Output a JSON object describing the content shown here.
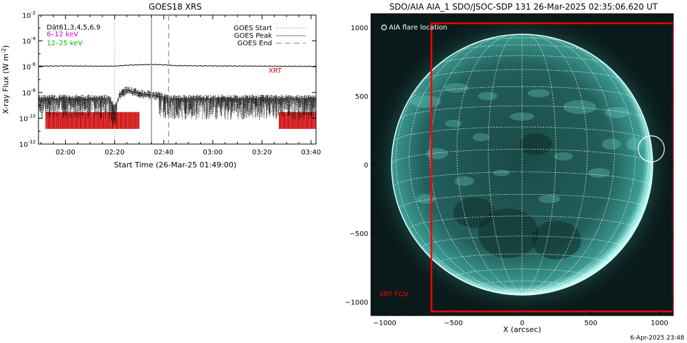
{
  "chart_data": [
    {
      "type": "line",
      "title": "GOES18 XRS",
      "xlabel": "Start Time (26-Mar-25 01:49:00)",
      "ylabel": "X-ray Flux (W m",
      "ylabel_sup": "-2",
      "ylabel_close": ")",
      "y_scale": "log",
      "ylim": [
        1e-12,
        0.01
      ],
      "y_ticks": [
        {
          "value": 0.01,
          "base": "10",
          "exp": "-2"
        },
        {
          "value": 0.0001,
          "base": "10",
          "exp": "-4"
        },
        {
          "value": 1e-06,
          "base": "10",
          "exp": "-6"
        },
        {
          "value": 1e-08,
          "base": "10",
          "exp": "-8"
        },
        {
          "value": 1e-10,
          "base": "10",
          "exp": "-10"
        },
        {
          "value": 1e-12,
          "base": "10",
          "exp": "-12"
        }
      ],
      "xlim": [
        "01:49",
        "03:42"
      ],
      "x_ticks": [
        "02:00",
        "02:20",
        "02:40",
        "03:00",
        "03:20",
        "03:40"
      ],
      "annotations": [
        {
          "text": "Dät61,3,4,5,6,9",
          "color": "#000000"
        },
        {
          "text": "6–12 keV",
          "color": "#d000d0"
        },
        {
          "text": "12–25 keV",
          "color": "#00c000"
        }
      ],
      "legend": {
        "placement": "top-right",
        "entries": [
          {
            "label": "GOES Start",
            "style": "dotted"
          },
          {
            "label": "GOES Peak",
            "style": "solid"
          },
          {
            "label": "GOES End",
            "style": "dashed"
          }
        ]
      },
      "events": {
        "start": "02:20",
        "peak": "02:35",
        "end": "02:42"
      },
      "series": [
        {
          "color": "#000000",
          "x": [
            "01:49",
            "02:00",
            "02:10",
            "02:20",
            "02:25",
            "02:30",
            "02:35",
            "02:40",
            "02:45",
            "03:00",
            "03:20",
            "03:42"
          ],
          "y": [
            1.1e-06,
            1.15e-06,
            1.1e-06,
            1.1e-06,
            1.3e-06,
            1.4e-06,
            1.5e-06,
            1.4e-06,
            1.2e-06,
            1.15e-06,
            1.1e-06,
            1.05e-06
          ]
        },
        {
          "color": "#000000",
          "x": [
            "01:49",
            "02:00",
            "02:10",
            "02:18",
            "02:20",
            "02:22",
            "02:25",
            "02:30",
            "02:35",
            "02:38",
            "02:42",
            "03:00",
            "03:20",
            "03:42"
          ],
          "y": [
            3e-09,
            3e-09,
            3e-09,
            3e-09,
            5e-10,
            6e-09,
            1.5e-08,
            8e-09,
            6e-09,
            5e-09,
            3e-09,
            3e-09,
            3e-09,
            3e-09
          ]
        }
      ],
      "xrt": {
        "label": "XRT",
        "color": "#cc0000",
        "coverage": [
          [
            "01:52",
            "02:30"
          ],
          [
            "03:27",
            "03:42"
          ]
        ]
      }
    },
    {
      "type": "scatter",
      "title": "SDO/AIA AIA_1 SDO/JSOC-SDP 131 26-Mar-2025 02:35:06.620 UT",
      "xlabel": "X (arcsec)",
      "ylabel": "",
      "xlim": [
        -1100,
        1100
      ],
      "ylim": [
        -1100,
        1100
      ],
      "x_ticks": [
        "−1000",
        "−500",
        "0",
        "500",
        "1000"
      ],
      "x_tick_values": [
        -1000,
        -500,
        0,
        500,
        1000
      ],
      "y_ticks": [
        "1000",
        "500",
        "0",
        "−500",
        "−1000"
      ],
      "y_tick_values": [
        1000,
        500,
        0,
        -500,
        -1000
      ],
      "solar_radius_arcsec": 950,
      "flare_location": {
        "label": "AIA flare location",
        "x": 940,
        "y": 115,
        "radius": 95
      },
      "xrt_fov": {
        "label": "XRT FOV",
        "x0": -660,
        "x1": 1100,
        "y0": -1070,
        "y1": 1030,
        "color": "#ff0000"
      },
      "image_colors": {
        "background": "#0a1a1a",
        "disk": "#1f5a56",
        "bright": "#7fe6dc",
        "grid": "#ffffff"
      }
    }
  ],
  "footer": {
    "timestamp": "6-Apr-2025 23:48"
  }
}
